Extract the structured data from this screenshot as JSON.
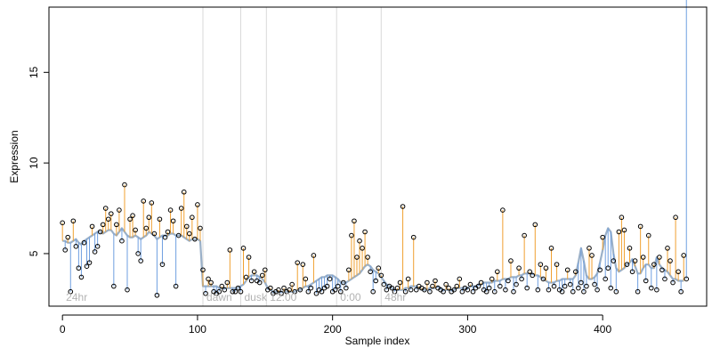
{
  "chart_data": {
    "type": "scatter",
    "title": "",
    "xlabel": "Sample index",
    "ylabel": "Expression",
    "xlim": [
      -10,
      477
    ],
    "ylim": [
      2.1,
      18.6
    ],
    "xticks": [
      0,
      100,
      200,
      300,
      400
    ],
    "yticks": [
      5,
      10,
      15
    ],
    "grid": false,
    "colors": {
      "above": "#f0a030",
      "below": "#6f9fe0",
      "fit": "#9ab0c8",
      "separator": "#d9d9d9",
      "points": "#000000"
    },
    "segments": [
      {
        "label": "24hr",
        "start": 0,
        "end": 104
      },
      {
        "label": "dawn",
        "start": 104,
        "end": 132
      },
      {
        "label": "dusk",
        "start": 132,
        "end": 151
      },
      {
        "label": "12:00",
        "start": 151,
        "end": 203
      },
      {
        "label": "0:00",
        "start": 203,
        "end": 236
      },
      {
        "label": "48hr",
        "start": 236,
        "end": 463
      }
    ],
    "series": [
      {
        "x": [
          0,
          2,
          4,
          6,
          8,
          10,
          12,
          14,
          16,
          18,
          20,
          22,
          24,
          26,
          28,
          30,
          32,
          34,
          36,
          38,
          40,
          42,
          44,
          46,
          48,
          50,
          52,
          54,
          56,
          58,
          60,
          62,
          64,
          66,
          68,
          70,
          72,
          74,
          76,
          78,
          80,
          82,
          84,
          86,
          88,
          90,
          92,
          94,
          96,
          98,
          100,
          102,
          104,
          106,
          108,
          110,
          112,
          114,
          116,
          118,
          120,
          122,
          124,
          126,
          128,
          130,
          132,
          134,
          136,
          138,
          140,
          142,
          144,
          146,
          148,
          150,
          152,
          154,
          156,
          158,
          160,
          162,
          164,
          166,
          168,
          170,
          172,
          174,
          176,
          178,
          180,
          182,
          184,
          186,
          188,
          190,
          192,
          194,
          196,
          198,
          200,
          202,
          204,
          206,
          208,
          210,
          212,
          214,
          216,
          218,
          220,
          222,
          224,
          226,
          228,
          230,
          232,
          234,
          236,
          238,
          240,
          242,
          244,
          246,
          248,
          250,
          252,
          254,
          256,
          258,
          260,
          262,
          264,
          266,
          268,
          270,
          272,
          274,
          276,
          278,
          280,
          282,
          284,
          286,
          288,
          290,
          292,
          294,
          296,
          298,
          300,
          302,
          304,
          306,
          308,
          310,
          312,
          314,
          316,
          318,
          320,
          322,
          324,
          326,
          328,
          330,
          332,
          334,
          336,
          338,
          340,
          342,
          344,
          346,
          348,
          350,
          352,
          354,
          356,
          358,
          360,
          362,
          364,
          366,
          368,
          370,
          372,
          374,
          376,
          378,
          380,
          382,
          384,
          386,
          388,
          390,
          392,
          394,
          396,
          398,
          400,
          402,
          404,
          406,
          408,
          410,
          412,
          414,
          416,
          418,
          420,
          422,
          424,
          426,
          428,
          430,
          432,
          434,
          436,
          438,
          440,
          442,
          444,
          446,
          448,
          450,
          452,
          454,
          456,
          458,
          460,
          462
        ],
        "y": [
          6.7,
          5.2,
          5.9,
          2.9,
          6.8,
          5.4,
          4.2,
          3.7,
          5.6,
          4.3,
          4.5,
          6.5,
          5.1,
          5.4,
          6.2,
          6.6,
          7.5,
          6.9,
          7.2,
          3.2,
          6.6,
          7.4,
          5.7,
          8.8,
          3.0,
          6.9,
          7.1,
          6.3,
          5.0,
          4.6,
          7.9,
          6.4,
          7.0,
          7.8,
          6.1,
          2.7,
          6.9,
          4.4,
          5.9,
          6.2,
          7.4,
          6.8,
          3.2,
          6.0,
          7.5,
          8.4,
          6.5,
          6.1,
          7.0,
          5.8,
          7.7,
          6.4,
          4.1,
          2.8,
          3.6,
          3.4,
          2.9,
          2.8,
          2.9,
          3.2,
          3.0,
          3.4,
          5.2,
          2.9,
          2.9,
          3.1,
          2.9,
          5.3,
          3.7,
          4.8,
          3.5,
          4.0,
          3.5,
          3.4,
          3.8,
          4.1,
          3.0,
          3.1,
          2.8,
          2.9,
          3.0,
          2.8,
          3.1,
          2.9,
          3.0,
          3.3,
          2.9,
          4.5,
          3.0,
          4.4,
          3.6,
          2.9,
          3.1,
          4.9,
          2.8,
          3.0,
          2.9,
          3.1,
          3.2,
          3.6,
          2.9,
          3.0,
          3.2,
          2.9,
          3.4,
          3.1,
          4.1,
          6.0,
          6.8,
          4.8,
          5.7,
          5.3,
          6.2,
          4.8,
          4.0,
          2.9,
          3.5,
          4.2,
          3.8,
          3.3,
          3.0,
          3.2,
          3.1,
          2.9,
          3.1,
          3.4,
          7.6,
          2.9,
          3.6,
          3.0,
          5.9,
          3.0,
          3.2,
          3.1,
          3.0,
          3.4,
          2.9,
          3.2,
          3.5,
          3.1,
          3.0,
          2.9,
          3.3,
          3.1,
          2.9,
          3.0,
          3.2,
          3.6,
          2.9,
          3.1,
          3.0,
          3.3,
          2.9,
          3.1,
          3.2,
          3.4,
          3.0,
          2.9,
          3.1,
          3.6,
          2.9,
          4.0,
          3.2,
          7.4,
          3.0,
          3.5,
          4.6,
          2.9,
          3.3,
          4.2,
          3.6,
          6.0,
          3.1,
          4.0,
          3.8,
          6.6,
          3.0,
          4.4,
          3.6,
          4.2,
          3.0,
          5.3,
          3.2,
          4.4,
          3.0,
          2.9,
          3.2,
          4.1,
          3.3,
          2.9,
          4.0,
          3.1,
          3.4,
          2.9,
          3.2,
          5.3,
          4.9,
          3.3,
          3.0,
          4.1,
          5.9,
          3.6,
          4.2,
          3.1,
          4.6,
          2.9,
          6.2,
          7.0,
          6.3,
          4.4,
          5.3,
          4.0,
          4.6,
          2.9,
          6.5,
          4.8,
          3.5,
          6.0,
          3.1,
          4.4,
          3.0,
          4.8,
          4.1,
          3.6,
          5.3,
          4.6,
          3.4,
          7.0,
          4.0,
          2.9,
          4.9,
          3.6
        ]
      }
    ],
    "fit_values": [
      5.7,
      5.7,
      5.6,
      5.6,
      5.7,
      5.8,
      5.6,
      5.5,
      5.7,
      5.8,
      5.9,
      6.0,
      6.1,
      6.2,
      6.2,
      6.1,
      6.2,
      6.3,
      6.3,
      6.1,
      6.0,
      6.2,
      6.4,
      6.2,
      6.0,
      5.9,
      5.9,
      6.0,
      5.9,
      5.8,
      5.9,
      6.0,
      6.2,
      6.1,
      6.0,
      5.8,
      5.9,
      6.0,
      6.0,
      6.0,
      6.1,
      6.1,
      6.0,
      6.0,
      6.0,
      5.9,
      5.8,
      5.7,
      5.8,
      5.8,
      5.8,
      5.7,
      3.2,
      3.2,
      3.2,
      3.2,
      3.2,
      3.2,
      3.1,
      3.1,
      3.1,
      3.1,
      3.1,
      3.1,
      3.1,
      3.1,
      3.2,
      3.3,
      3.5,
      3.7,
      3.8,
      3.8,
      3.8,
      3.7,
      3.6,
      3.4,
      3.1,
      3.0,
      2.9,
      2.9,
      2.9,
      2.9,
      2.9,
      2.9,
      2.9,
      2.9,
      2.9,
      3.0,
      3.0,
      3.1,
      3.2,
      3.2,
      3.3,
      3.4,
      3.5,
      3.6,
      3.7,
      3.7,
      3.8,
      3.8,
      3.8,
      3.7,
      3.6,
      3.4,
      3.4,
      3.4,
      3.5,
      3.6,
      3.7,
      3.8,
      3.9,
      4.1,
      4.3,
      4.4,
      4.3,
      4.1,
      4.0,
      3.9,
      3.7,
      3.5,
      3.3,
      3.2,
      3.1,
      3.0,
      3.0,
      3.0,
      3.0,
      3.1,
      3.1,
      3.2,
      3.2,
      3.2,
      3.1,
      3.0,
      3.0,
      3.0,
      3.1,
      3.1,
      3.1,
      3.2,
      3.1,
      3.0,
      3.0,
      3.0,
      3.0,
      3.0,
      3.1,
      3.1,
      3.1,
      3.1,
      3.1,
      3.2,
      3.2,
      3.2,
      3.3,
      3.3,
      3.4,
      3.4,
      3.4,
      3.4,
      3.5,
      3.5,
      3.5,
      3.6,
      3.6,
      3.6,
      3.7,
      3.7,
      3.7,
      3.8,
      3.8,
      3.9,
      3.9,
      3.9,
      3.9,
      3.8,
      3.8,
      3.7,
      3.6,
      3.5,
      3.4,
      3.4,
      3.4,
      3.5,
      3.5,
      3.6,
      3.6,
      3.6,
      3.6,
      3.6,
      3.8,
      4.5,
      5.3,
      4.6,
      3.8,
      3.6,
      3.6,
      3.7,
      3.9,
      4.5,
      5.2,
      6.0,
      6.4,
      6.2,
      5.0,
      4.2,
      4.0,
      4.1,
      4.2,
      4.4,
      4.5,
      4.7,
      4.3,
      3.9,
      3.9,
      4.2,
      4.4,
      4.4,
      4.2,
      4.2,
      4.8,
      4.4,
      4.2,
      4.1,
      4.0,
      3.8,
      3.6,
      3.6,
      3.5,
      3.5,
      3.5
    ]
  }
}
